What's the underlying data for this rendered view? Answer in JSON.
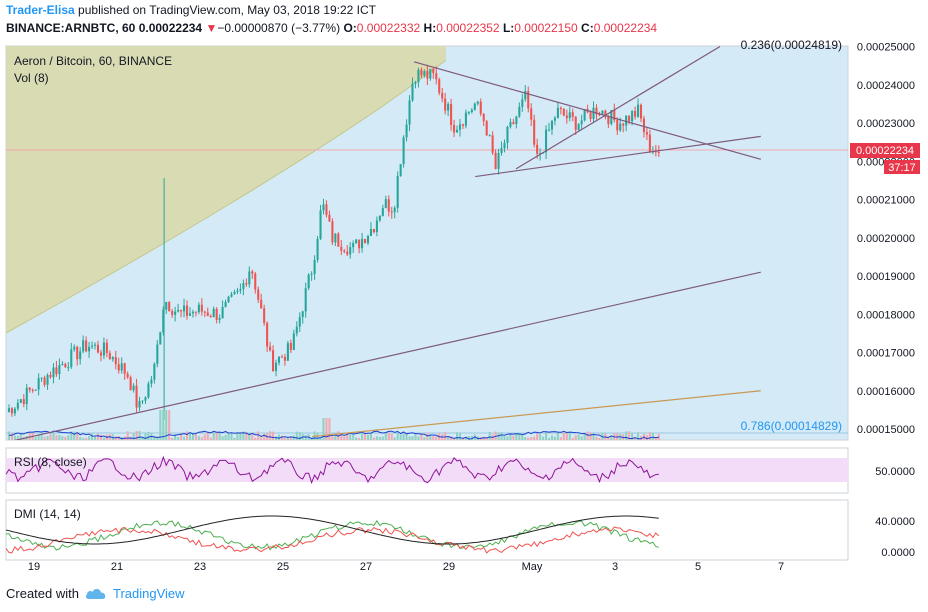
{
  "header": {
    "author": "Trader-Elisa",
    "published": "published on TradingView.com, May 03, 2018 19:22 ICT",
    "symbol": "BINANCE:ARNBTC, 60",
    "last": "0.00022234",
    "change": "−0.00000870 (−3.77%)",
    "o_label": "O:",
    "o": "0.00022332",
    "h_label": "H:",
    "h": "0.00022352",
    "l_label": "L:",
    "l": "0.00022150",
    "c_label": "C:",
    "c": "0.00022234"
  },
  "chart_data": [
    {
      "type": "candlestick",
      "title": "Aeron / Bitcoin, 60, BINANCE",
      "subtitle": "Vol (8)",
      "y_ticks": [
        "0.00025000",
        "0.00024000",
        "0.00023000",
        "0.00022000",
        "0.00021000",
        "0.00020000",
        "0.00019000",
        "0.00018000",
        "0.00017000",
        "0.00016000",
        "0.00015000"
      ],
      "x_ticks": [
        "19",
        "21",
        "23",
        "25",
        "27",
        "29",
        "May",
        "3",
        "5",
        "7"
      ],
      "ylim": [
        0.000145,
        0.000251
      ],
      "price_label": "0.00022234",
      "countdown": "37:17",
      "fib_levels": [
        {
          "label": "0.236(0.00024819)",
          "value": 0.00024819
        },
        {
          "label": "0.786(0.00014829)",
          "value": 0.00014829
        }
      ],
      "path_points": [
        {
          "x": 0,
          "y": 0.0001545
        },
        {
          "x": 2,
          "y": 0.000159
        },
        {
          "x": 4,
          "y": 0.000164
        },
        {
          "x": 6,
          "y": 0.000168
        },
        {
          "x": 8,
          "y": 0.000172
        },
        {
          "x": 10,
          "y": 0.00017
        },
        {
          "x": 12,
          "y": 0.000164
        },
        {
          "x": 13,
          "y": 0.000155
        },
        {
          "x": 14.5,
          "y": 0.000165
        },
        {
          "x": 15.5,
          "y": 0.000184
        },
        {
          "x": 17,
          "y": 0.00018
        },
        {
          "x": 19,
          "y": 0.000181
        },
        {
          "x": 21,
          "y": 0.00018
        },
        {
          "x": 23,
          "y": 0.000186
        },
        {
          "x": 24,
          "y": 0.000193
        },
        {
          "x": 25,
          "y": 0.000181
        },
        {
          "x": 26,
          "y": 0.000167
        },
        {
          "x": 28,
          "y": 0.000171
        },
        {
          "x": 30,
          "y": 0.000192
        },
        {
          "x": 31,
          "y": 0.000209
        },
        {
          "x": 32,
          "y": 0.0002
        },
        {
          "x": 34,
          "y": 0.000197
        },
        {
          "x": 36,
          "y": 0.000203
        },
        {
          "x": 37,
          "y": 0.000209
        },
        {
          "x": 38,
          "y": 0.000208
        },
        {
          "x": 39,
          "y": 0.000227
        },
        {
          "x": 40,
          "y": 0.000243
        },
        {
          "x": 42,
          "y": 0.000242
        },
        {
          "x": 44,
          "y": 0.000229
        },
        {
          "x": 46,
          "y": 0.000235
        },
        {
          "x": 47,
          "y": 0.00023
        },
        {
          "x": 48,
          "y": 0.000218
        },
        {
          "x": 49,
          "y": 0.000226
        },
        {
          "x": 51,
          "y": 0.000237
        },
        {
          "x": 52,
          "y": 0.00022
        },
        {
          "x": 54,
          "y": 0.000233
        },
        {
          "x": 56,
          "y": 0.00023
        },
        {
          "x": 58,
          "y": 0.000234
        },
        {
          "x": 60,
          "y": 0.00023
        },
        {
          "x": 62,
          "y": 0.000233
        },
        {
          "x": 63,
          "y": 0.000224
        },
        {
          "x": 64,
          "y": 0.0002223
        }
      ],
      "trend_lines": [
        {
          "name": "lower-channel",
          "from": [
            0,
            0.0001465
          ],
          "to": [
            74,
            0.000191
          ]
        },
        {
          "name": "triangle-top",
          "from": [
            40,
            0.000246
          ],
          "to": [
            74,
            0.0002205
          ]
        },
        {
          "name": "triangle-bottom",
          "from": [
            46,
            0.000216
          ],
          "to": [
            74,
            0.0002265
          ]
        },
        {
          "name": "rising-ray",
          "from": [
            50,
            0.000218
          ],
          "to": [
            70,
            0.00025
          ]
        },
        {
          "name": "volume-line",
          "from": [
            30,
            0.000148
          ],
          "to": [
            74,
            0.00016
          ]
        }
      ]
    },
    {
      "type": "line",
      "title": "RSI (8, close)",
      "y_ticks": [
        "50.0000"
      ],
      "ylim": [
        20,
        80
      ]
    },
    {
      "type": "line",
      "title": "DMI (14, 14)",
      "y_ticks": [
        "40.0000",
        "0.0000"
      ],
      "ylim": [
        -5,
        50
      ]
    }
  ],
  "footer": {
    "created_with": "Created with",
    "brand": "TradingView"
  },
  "colors": {
    "up": "#26a69a",
    "down": "#ef5350",
    "chart_bg": "#d5eaf7",
    "arc_fill": "#d9dcb3",
    "trend": "#7d5a7e",
    "price_tag": "#e8364a",
    "rsi": "#8e1599",
    "rsi_band": "#f3dcf7"
  }
}
